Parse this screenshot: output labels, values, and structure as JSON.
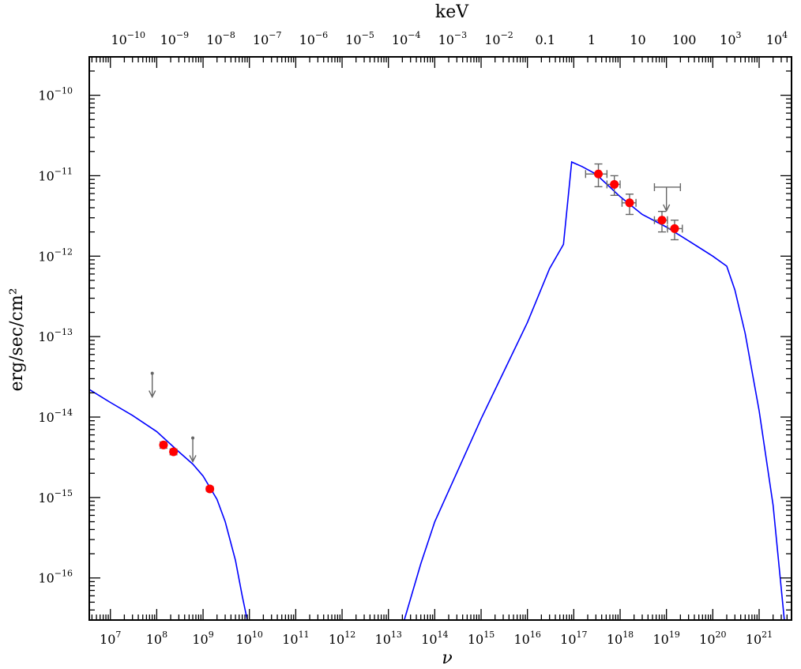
{
  "chart_data": {
    "type": "scatter",
    "xlabel": "ν",
    "ylabel": "erg/sec/cm²",
    "top_xlabel": "keV",
    "x_scale": "log",
    "y_scale": "log",
    "xlim": [
      3500000.0,
      5e+21
    ],
    "ylim": [
      3e-17,
      3e-10
    ],
    "grid": false,
    "bottom_x_ticks": [
      "10^7",
      "10^8",
      "10^9",
      "10^10",
      "10^11",
      "10^12",
      "10^13",
      "10^14",
      "10^15",
      "10^16",
      "10^17",
      "10^18",
      "10^19",
      "10^20",
      "10^21"
    ],
    "top_x_ticks": [
      "10^-10",
      "10^-9",
      "10^-8",
      "10^-7",
      "10^-6",
      "10^-5",
      "10^-4",
      "10^-3",
      "10^-2",
      "0.1",
      "1",
      "10",
      "100",
      "10^3",
      "10^4"
    ],
    "y_ticks": [
      "10^-16",
      "10^-15",
      "10^-14",
      "10^-13",
      "10^-12",
      "10^-11",
      "10^-10"
    ],
    "series": [
      {
        "kind": "model_curve_low",
        "color": "#0000ff",
        "points": [
          [
            3500000.0,
            2.2e-14
          ],
          [
            10000000.0,
            1.52e-14
          ],
          [
            30000000.0,
            1.05e-14
          ],
          [
            100000000.0,
            6.6e-15
          ],
          [
            300000000.0,
            3.7e-15
          ],
          [
            600000000.0,
            2.6e-15
          ],
          [
            1000000000.0,
            1.85e-15
          ],
          [
            2000000000.0,
            9.5e-16
          ],
          [
            3000000000.0,
            5e-16
          ],
          [
            5000000000.0,
            1.65e-16
          ],
          [
            7000000000.0,
            6e-17
          ],
          [
            9000000000.0,
            3e-17
          ]
        ]
      },
      {
        "kind": "model_curve_high",
        "color": "#0000ff",
        "points": [
          [
            22000000000000.0,
            3e-17
          ],
          [
            50000000000000.0,
            1.5e-16
          ],
          [
            100000000000000.0,
            5e-16
          ],
          [
            1000000000000000.0,
            9.5e-15
          ],
          [
            1e+16,
            1.5e-13
          ],
          [
            3e+16,
            7e-13
          ],
          [
            6e+16,
            1.4e-12
          ],
          [
            9e+16,
            1.48e-11
          ],
          [
            1.5e+17,
            1.3e-11
          ],
          [
            3e+17,
            1.05e-11
          ],
          [
            1e+18,
            5.5e-12
          ],
          [
            3e+18,
            3.3e-12
          ],
          [
            1e+19,
            2.3e-12
          ],
          [
            3e+19,
            1.55e-12
          ],
          [
            1e+20,
            1e-12
          ],
          [
            2e+20,
            7.5e-13
          ],
          [
            3e+20,
            3.8e-13
          ],
          [
            5e+20,
            1.1e-13
          ],
          [
            1e+21,
            1.2e-14
          ],
          [
            2e+21,
            8e-16
          ],
          [
            3.5e+21,
            3e-17
          ]
        ]
      },
      {
        "kind": "detections",
        "color": "#ff0000",
        "points": [
          {
            "x": 140000000.0,
            "y": 4.5e-15,
            "yerr_lo": 4.1e-15,
            "yerr_hi": 4.9e-15
          },
          {
            "x": 230000000.0,
            "y": 3.7e-15,
            "yerr_lo": 3.4e-15,
            "yerr_hi": 4e-15
          },
          {
            "x": 1400000000.0,
            "y": 1.28e-15,
            "yerr_lo": 1.2e-15,
            "yerr_hi": 1.36e-15
          },
          {
            "x": 3.4e+17,
            "y": 1.05e-11,
            "xerr_lo": 1.8e+17,
            "xerr_hi": 5.2e+17,
            "yerr_lo": 7.3e-12,
            "yerr_hi": 1.4e-11
          },
          {
            "x": 7.5e+17,
            "y": 7.8e-12,
            "xerr_lo": 5.2e+17,
            "xerr_hi": 1e+18,
            "yerr_lo": 5.7e-12,
            "yerr_hi": 1e-11
          },
          {
            "x": 1.6e+18,
            "y": 4.6e-12,
            "xerr_lo": 1.1e+18,
            "xerr_hi": 2.2e+18,
            "yerr_lo": 3.3e-12,
            "yerr_hi": 5.9e-12
          },
          {
            "x": 8e+18,
            "y": 2.8e-12,
            "xerr_lo": 5.5e+18,
            "xerr_hi": 1.05e+19,
            "yerr_lo": 2e-12,
            "yerr_hi": 3.6e-12
          },
          {
            "x": 1.5e+19,
            "y": 2.2e-12,
            "xerr_lo": 1.05e+19,
            "xerr_hi": 2.2e+19,
            "yerr_lo": 1.6e-12,
            "yerr_hi": 2.8e-12
          }
        ]
      },
      {
        "kind": "upper_limits",
        "color": "#666666",
        "points": [
          {
            "x": 80000000.0,
            "y": 3.5e-14
          },
          {
            "x": 600000000.0,
            "y": 5.5e-15
          },
          {
            "x": 1e+19,
            "y": 7.2e-12,
            "xerr_lo": 5.5e+18,
            "xerr_hi": 2e+19
          }
        ]
      }
    ]
  }
}
